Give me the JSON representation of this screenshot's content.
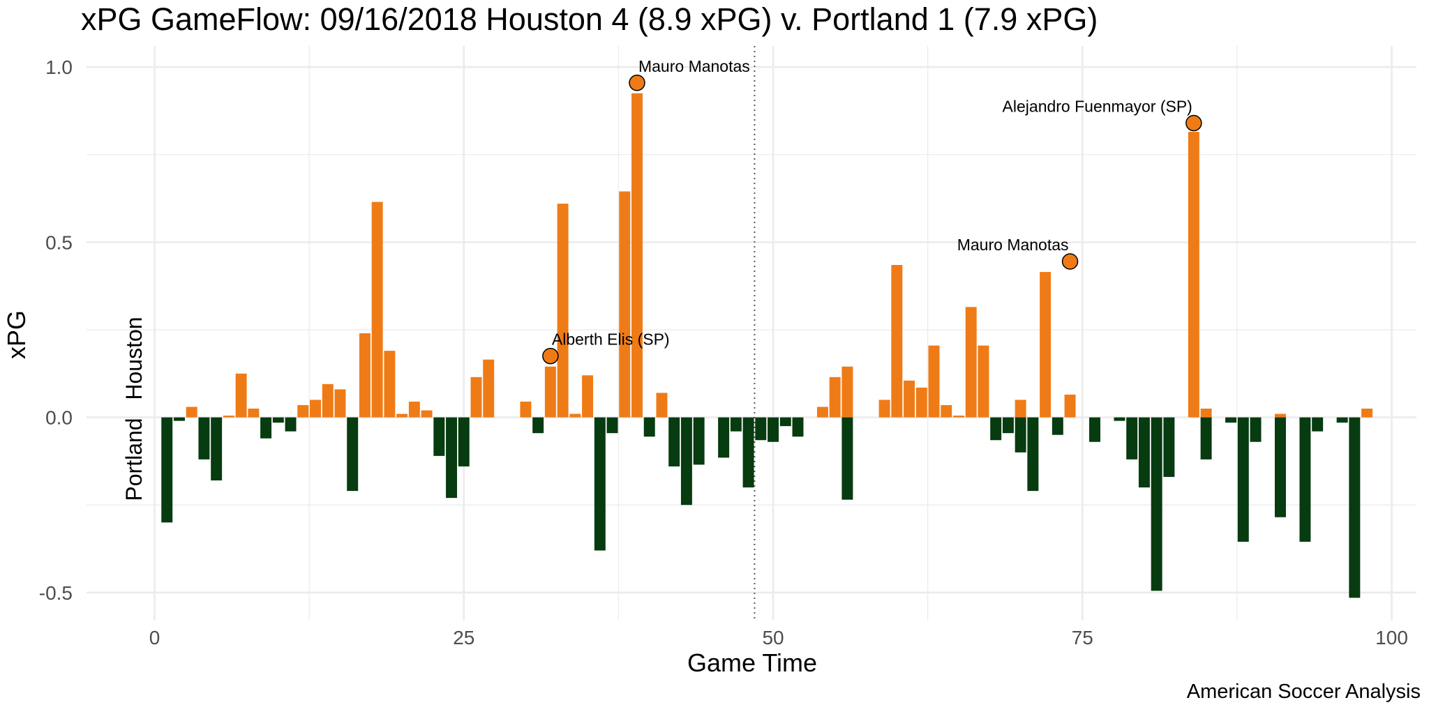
{
  "chart_data": {
    "type": "bar",
    "title": "xPG GameFlow: 09/16/2018 Houston 4 (8.9 xPG) v. Portland 1 (7.9 xPG)",
    "xlabel": "Game Time",
    "ylabel": "xPG",
    "caption": "American Soccer Analysis",
    "xlim": [
      -5.5,
      102
    ],
    "ylim": [
      -0.58,
      1.06
    ],
    "x_ticks": [
      0,
      25,
      50,
      75,
      100
    ],
    "y_ticks": [
      -0.5,
      0.0,
      0.5,
      1.0
    ],
    "y_tick_labels": [
      "-0.5",
      "0.0",
      "0.5",
      "1.0"
    ],
    "halftime_line_x": 48.5,
    "grid": true,
    "team_labels": {
      "positive": "Houston",
      "negative": "Portland"
    },
    "colors": {
      "home": "#ef7b17",
      "away": "#073b10",
      "grid": "#ebebeb",
      "axis_text": "#4d4d4d"
    },
    "series": [
      {
        "name": "Houston",
        "color": "#ef7b17",
        "x": [
          3,
          6,
          7,
          8,
          12,
          13,
          14,
          15,
          17,
          18,
          19,
          20,
          21,
          22,
          26,
          27,
          30,
          32,
          33,
          34,
          35,
          38,
          39,
          41,
          54,
          55,
          56,
          59,
          60,
          61,
          62,
          63,
          64,
          65,
          66,
          67,
          70,
          72,
          74,
          84,
          85,
          91,
          98
        ],
        "values": [
          0.03,
          0.005,
          0.125,
          0.025,
          0.035,
          0.05,
          0.095,
          0.08,
          0.24,
          0.615,
          0.19,
          0.01,
          0.045,
          0.02,
          0.115,
          0.165,
          0.045,
          0.145,
          0.61,
          0.01,
          0.12,
          0.645,
          0.925,
          0.07,
          0.03,
          0.115,
          0.145,
          0.05,
          0.435,
          0.105,
          0.085,
          0.205,
          0.035,
          0.005,
          0.315,
          0.205,
          0.05,
          0.415,
          0.065,
          0.815,
          0.025,
          0.01,
          0.025
        ]
      },
      {
        "name": "Portland",
        "color": "#073b10",
        "x": [
          1,
          2,
          4,
          5,
          9,
          10,
          11,
          16,
          23,
          24,
          25,
          31,
          36,
          37,
          40,
          42,
          43,
          44,
          46,
          47,
          48,
          49,
          50,
          51,
          52,
          56,
          68,
          69,
          70,
          71,
          73,
          76,
          78,
          79,
          80,
          81,
          82,
          85,
          87,
          88,
          89,
          91,
          93,
          94,
          96,
          97
        ],
        "values": [
          -0.3,
          -0.01,
          -0.12,
          -0.18,
          -0.06,
          -0.015,
          -0.04,
          -0.21,
          -0.11,
          -0.23,
          -0.14,
          -0.045,
          -0.38,
          -0.045,
          -0.055,
          -0.14,
          -0.25,
          -0.135,
          -0.115,
          -0.04,
          -0.2,
          -0.065,
          -0.07,
          -0.025,
          -0.055,
          -0.235,
          -0.065,
          -0.045,
          -0.1,
          -0.21,
          -0.05,
          -0.07,
          -0.01,
          -0.12,
          -0.2,
          -0.495,
          -0.17,
          -0.12,
          -0.015,
          -0.355,
          -0.07,
          -0.285,
          -0.355,
          -0.04,
          -0.015,
          -0.515
        ]
      }
    ],
    "annotations": [
      {
        "text": "Alberth Elis (SP)",
        "x": 32,
        "y": 0.175,
        "anchor": "start"
      },
      {
        "text": "Mauro Manotas",
        "x": 39,
        "y": 0.955,
        "anchor": "start"
      },
      {
        "text": "Mauro Manotas",
        "x": 74,
        "y": 0.445,
        "anchor": "end"
      },
      {
        "text": "Alejandro Fuenmayor (SP)",
        "x": 84,
        "y": 0.84,
        "anchor": "end"
      }
    ]
  }
}
